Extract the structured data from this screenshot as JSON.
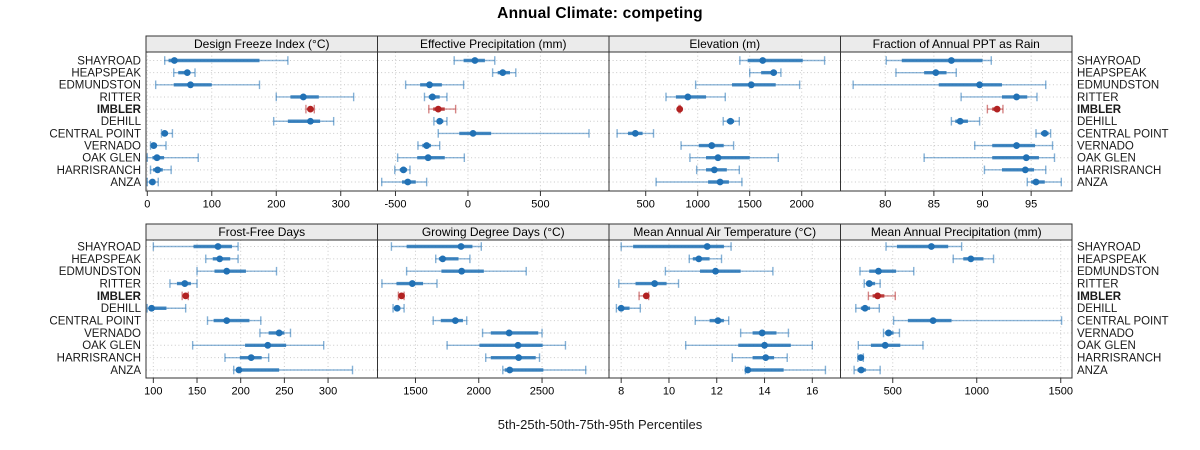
{
  "title": "Annual Climate: competing",
  "caption": "5th-25th-50th-75th-95th Percentiles",
  "colors": {
    "series_blue": "#2171b5",
    "highlight_red": "#b22222",
    "strip_background": "#ebebeb",
    "panel_border": "#333333",
    "gridline": "#c9c9c9",
    "label_text": "#1a1a1a"
  },
  "chart_data": {
    "type": "dotplot",
    "layout": "2 rows x 4 columns lattice, shared site axis",
    "marker": "median dot with 5th-25th-75th-95th percentile whiskers",
    "legend_position": "none",
    "grid": "dotted",
    "sites_top_to_bottom": [
      "SHAYROAD",
      "HEAPSPEAK",
      "EDMUNDSTON",
      "RITTER",
      "IMBLER",
      "DEHILL",
      "CENTRAL POINT",
      "VERNADO",
      "OAK GLEN",
      "HARRISRANCH",
      "ANZA"
    ],
    "highlight_site": "IMBLER",
    "percentile_order": [
      "p5",
      "p25",
      "p50",
      "p75",
      "p95"
    ],
    "panels": [
      {
        "title": "Design Freeze Index (°C)",
        "slug": "design-freeze-index",
        "row": 0,
        "col": 0,
        "xlim": [
          -2,
          357
        ],
        "ticks": [
          0,
          100,
          200,
          300
        ],
        "values": {
          "SHAYROAD": [
            27,
            33,
            42,
            174,
            218
          ],
          "HEAPSPEAK": [
            41,
            48,
            62,
            66,
            74
          ],
          "EDMUNDSTON": [
            13,
            41,
            67,
            100,
            174
          ],
          "RITTER": [
            200,
            222,
            242,
            266,
            320
          ],
          "IMBLER": [
            246,
            249,
            253,
            256,
            259
          ],
          "DEHILL": [
            196,
            218,
            253,
            268,
            289
          ],
          "CENTRAL POINT": [
            22,
            24,
            27,
            32,
            39
          ],
          "VERNADO": [
            5,
            7,
            10,
            15,
            29
          ],
          "OAK GLEN": [
            0,
            8,
            15,
            26,
            79
          ],
          "HARRISRANCH": [
            5,
            9,
            16,
            24,
            37
          ],
          "ANZA": [
            0,
            3,
            8,
            12,
            17
          ]
        }
      },
      {
        "title": "Effective Precipitation (mm)",
        "slug": "effective-precipitation",
        "row": 0,
        "col": 1,
        "xlim": [
          -624,
          973
        ],
        "ticks": [
          -500,
          0,
          500
        ],
        "values": {
          "SHAYROAD": [
            -95,
            -30,
            48,
            117,
            185
          ],
          "HEAPSPEAK": [
            170,
            205,
            240,
            290,
            330
          ],
          "EDMUNDSTON": [
            -430,
            -330,
            -265,
            -180,
            -30
          ],
          "RITTER": [
            -300,
            -270,
            -245,
            -195,
            -145
          ],
          "IMBLER": [
            -270,
            -240,
            -205,
            -160,
            -85
          ],
          "DEHILL": [
            -235,
            -215,
            -195,
            -170,
            -145
          ],
          "CENTRAL POINT": [
            -205,
            -60,
            35,
            160,
            835
          ],
          "VERNADO": [
            -345,
            -315,
            -285,
            -255,
            -195
          ],
          "OAK GLEN": [
            -485,
            -350,
            -275,
            -160,
            -25
          ],
          "HARRISRANCH": [
            -505,
            -470,
            -445,
            -420,
            -400
          ],
          "ANZA": [
            -595,
            -455,
            -415,
            -360,
            -285
          ]
        }
      },
      {
        "title": "Elevation (m)",
        "slug": "elevation",
        "row": 0,
        "col": 2,
        "xlim": [
          147,
          2373
        ],
        "ticks": [
          500,
          1000,
          1500,
          2000
        ],
        "values": {
          "SHAYROAD": [
            1405,
            1480,
            1625,
            2010,
            2220
          ],
          "HEAPSPEAK": [
            1500,
            1610,
            1730,
            1760,
            1800
          ],
          "EDMUNDSTON": [
            980,
            1330,
            1515,
            1750,
            1980
          ],
          "RITTER": [
            695,
            790,
            905,
            1080,
            1265
          ],
          "IMBLER": [
            820,
            824,
            827,
            830,
            833
          ],
          "DEHILL": [
            1245,
            1280,
            1315,
            1350,
            1400
          ],
          "CENTRAL POINT": [
            225,
            330,
            400,
            470,
            575
          ],
          "VERNADO": [
            840,
            1010,
            1135,
            1250,
            1345
          ],
          "OAK GLEN": [
            925,
            1080,
            1195,
            1500,
            1775
          ],
          "HARRISRANCH": [
            990,
            1080,
            1160,
            1280,
            1400
          ],
          "ANZA": [
            600,
            1100,
            1215,
            1300,
            1425
          ]
        }
      },
      {
        "title": "Fraction of Annual PPT as Rain",
        "slug": "fraction-ppt-rain",
        "row": 0,
        "col": 3,
        "xlim": [
          75.4,
          99.2
        ],
        "ticks": [
          80,
          85,
          90,
          95
        ],
        "values": {
          "SHAYROAD": [
            80.1,
            81.7,
            86.8,
            90.0,
            90.9
          ],
          "HEAPSPEAK": [
            81.1,
            84.0,
            85.2,
            86.3,
            87.3
          ],
          "EDMUNDSTON": [
            76.7,
            85.5,
            89.7,
            92.0,
            96.5
          ],
          "RITTER": [
            87.8,
            92.0,
            93.5,
            94.6,
            95.6
          ],
          "IMBLER": [
            90.5,
            91.0,
            91.5,
            91.8,
            92.1
          ],
          "DEHILL": [
            86.8,
            87.2,
            87.7,
            88.5,
            89.7
          ],
          "CENTRAL POINT": [
            95.5,
            96.0,
            96.4,
            96.8,
            97.0
          ],
          "VERNADO": [
            89.2,
            91.0,
            93.5,
            95.4,
            97.2
          ],
          "OAK GLEN": [
            84.0,
            91.0,
            94.5,
            95.8,
            97.4
          ],
          "HARRISRANCH": [
            90.2,
            92.0,
            94.4,
            95.3,
            96.5
          ],
          "ANZA": [
            94.6,
            95.0,
            95.5,
            96.4,
            98.1
          ]
        }
      },
      {
        "title": "Frost-Free Days",
        "slug": "frost-free-days",
        "row": 1,
        "col": 0,
        "xlim": [
          91.6,
          356.6
        ],
        "ticks": [
          100,
          150,
          200,
          250,
          300
        ],
        "values": {
          "SHAYROAD": [
            100,
            146,
            174,
            190,
            197
          ],
          "HEAPSPEAK": [
            160,
            168,
            176,
            188,
            197
          ],
          "EDMUNDSTON": [
            150,
            170,
            184,
            206,
            241
          ],
          "RITTER": [
            119,
            127,
            136,
            143,
            150
          ],
          "IMBLER": [
            133,
            135,
            137,
            139,
            140
          ],
          "DEHILL": [
            93,
            95,
            98,
            115,
            137
          ],
          "CENTRAL POINT": [
            162,
            169,
            184,
            210,
            223
          ],
          "VERNADO": [
            222,
            232,
            244,
            250,
            257
          ],
          "OAK GLEN": [
            145,
            205,
            231,
            252,
            295
          ],
          "HARRISRANCH": [
            182,
            199,
            212,
            224,
            232
          ],
          "ANZA": [
            192,
            195,
            198,
            244,
            328
          ]
        }
      },
      {
        "title": "Growing Degree Days (°C)",
        "slug": "growing-degree-days",
        "row": 1,
        "col": 1,
        "xlim": [
          1200,
          3029
        ],
        "ticks": [
          1500,
          2000,
          2500
        ],
        "values": {
          "SHAYROAD": [
            1310,
            1430,
            1860,
            1950,
            2020
          ],
          "HEAPSPEAK": [
            1660,
            1685,
            1715,
            1840,
            1930
          ],
          "EDMUNDSTON": [
            1430,
            1705,
            1865,
            2040,
            2375
          ],
          "RITTER": [
            1235,
            1350,
            1475,
            1560,
            1670
          ],
          "IMBLER": [
            1365,
            1380,
            1390,
            1398,
            1410
          ],
          "DEHILL": [
            1323,
            1340,
            1355,
            1380,
            1410
          ],
          "CENTRAL POINT": [
            1640,
            1700,
            1815,
            1875,
            1905
          ],
          "VERNADO": [
            2030,
            2095,
            2240,
            2470,
            2500
          ],
          "OAK GLEN": [
            1750,
            2005,
            2310,
            2505,
            2685
          ],
          "HARRISRANCH": [
            2055,
            2095,
            2315,
            2450,
            2480
          ],
          "ANZA": [
            2190,
            2205,
            2245,
            2510,
            2845
          ]
        }
      },
      {
        "title": "Mean Annual Air Temperature (°C)",
        "slug": "mean-annual-air-temperature",
        "row": 1,
        "col": 2,
        "xlim": [
          7.49,
          17.18
        ],
        "ticks": [
          8,
          10,
          12,
          14,
          16
        ],
        "values": {
          "SHAYROAD": [
            8.0,
            8.5,
            11.6,
            12.3,
            12.6
          ],
          "HEAPSPEAK": [
            10.85,
            11.0,
            11.25,
            11.7,
            12.2
          ],
          "EDMUNDSTON": [
            9.85,
            11.3,
            11.95,
            13.0,
            14.35
          ],
          "RITTER": [
            7.9,
            8.6,
            9.4,
            9.9,
            10.4
          ],
          "IMBLER": [
            8.75,
            8.95,
            9.05,
            9.1,
            9.15
          ],
          "DEHILL": [
            7.8,
            7.9,
            8.0,
            8.35,
            8.8
          ],
          "CENTRAL POINT": [
            11.1,
            11.7,
            12.05,
            12.3,
            12.5
          ],
          "VERNADO": [
            13.0,
            13.5,
            13.9,
            14.5,
            15.0
          ],
          "OAK GLEN": [
            10.7,
            12.9,
            14.0,
            15.1,
            16.0
          ],
          "HARRISRANCH": [
            12.65,
            13.5,
            14.05,
            14.4,
            14.95
          ],
          "ANZA": [
            13.2,
            13.25,
            13.3,
            14.8,
            16.55
          ]
        }
      },
      {
        "title": "Mean Annual Precipitation (mm)",
        "slug": "mean-annual-precipitation",
        "row": 1,
        "col": 3,
        "xlim": [
          189,
          1567
        ],
        "ticks": [
          500,
          1000,
          1500
        ],
        "values": {
          "SHAYROAD": [
            460,
            525,
            730,
            830,
            910
          ],
          "HEAPSPEAK": [
            860,
            920,
            965,
            1040,
            1100
          ],
          "EDMUNDSTON": [
            305,
            360,
            415,
            520,
            625
          ],
          "RITTER": [
            330,
            345,
            360,
            395,
            425
          ],
          "IMBLER": [
            355,
            380,
            410,
            450,
            515
          ],
          "DEHILL": [
            280,
            310,
            335,
            365,
            420
          ],
          "CENTRAL POINT": [
            505,
            590,
            740,
            850,
            1505
          ],
          "VERNADO": [
            445,
            455,
            475,
            505,
            540
          ],
          "OAK GLEN": [
            295,
            370,
            455,
            545,
            680
          ],
          "HARRISRANCH": [
            292,
            300,
            310,
            318,
            325
          ],
          "ANZA": [
            270,
            290,
            312,
            340,
            425
          ]
        }
      }
    ]
  }
}
